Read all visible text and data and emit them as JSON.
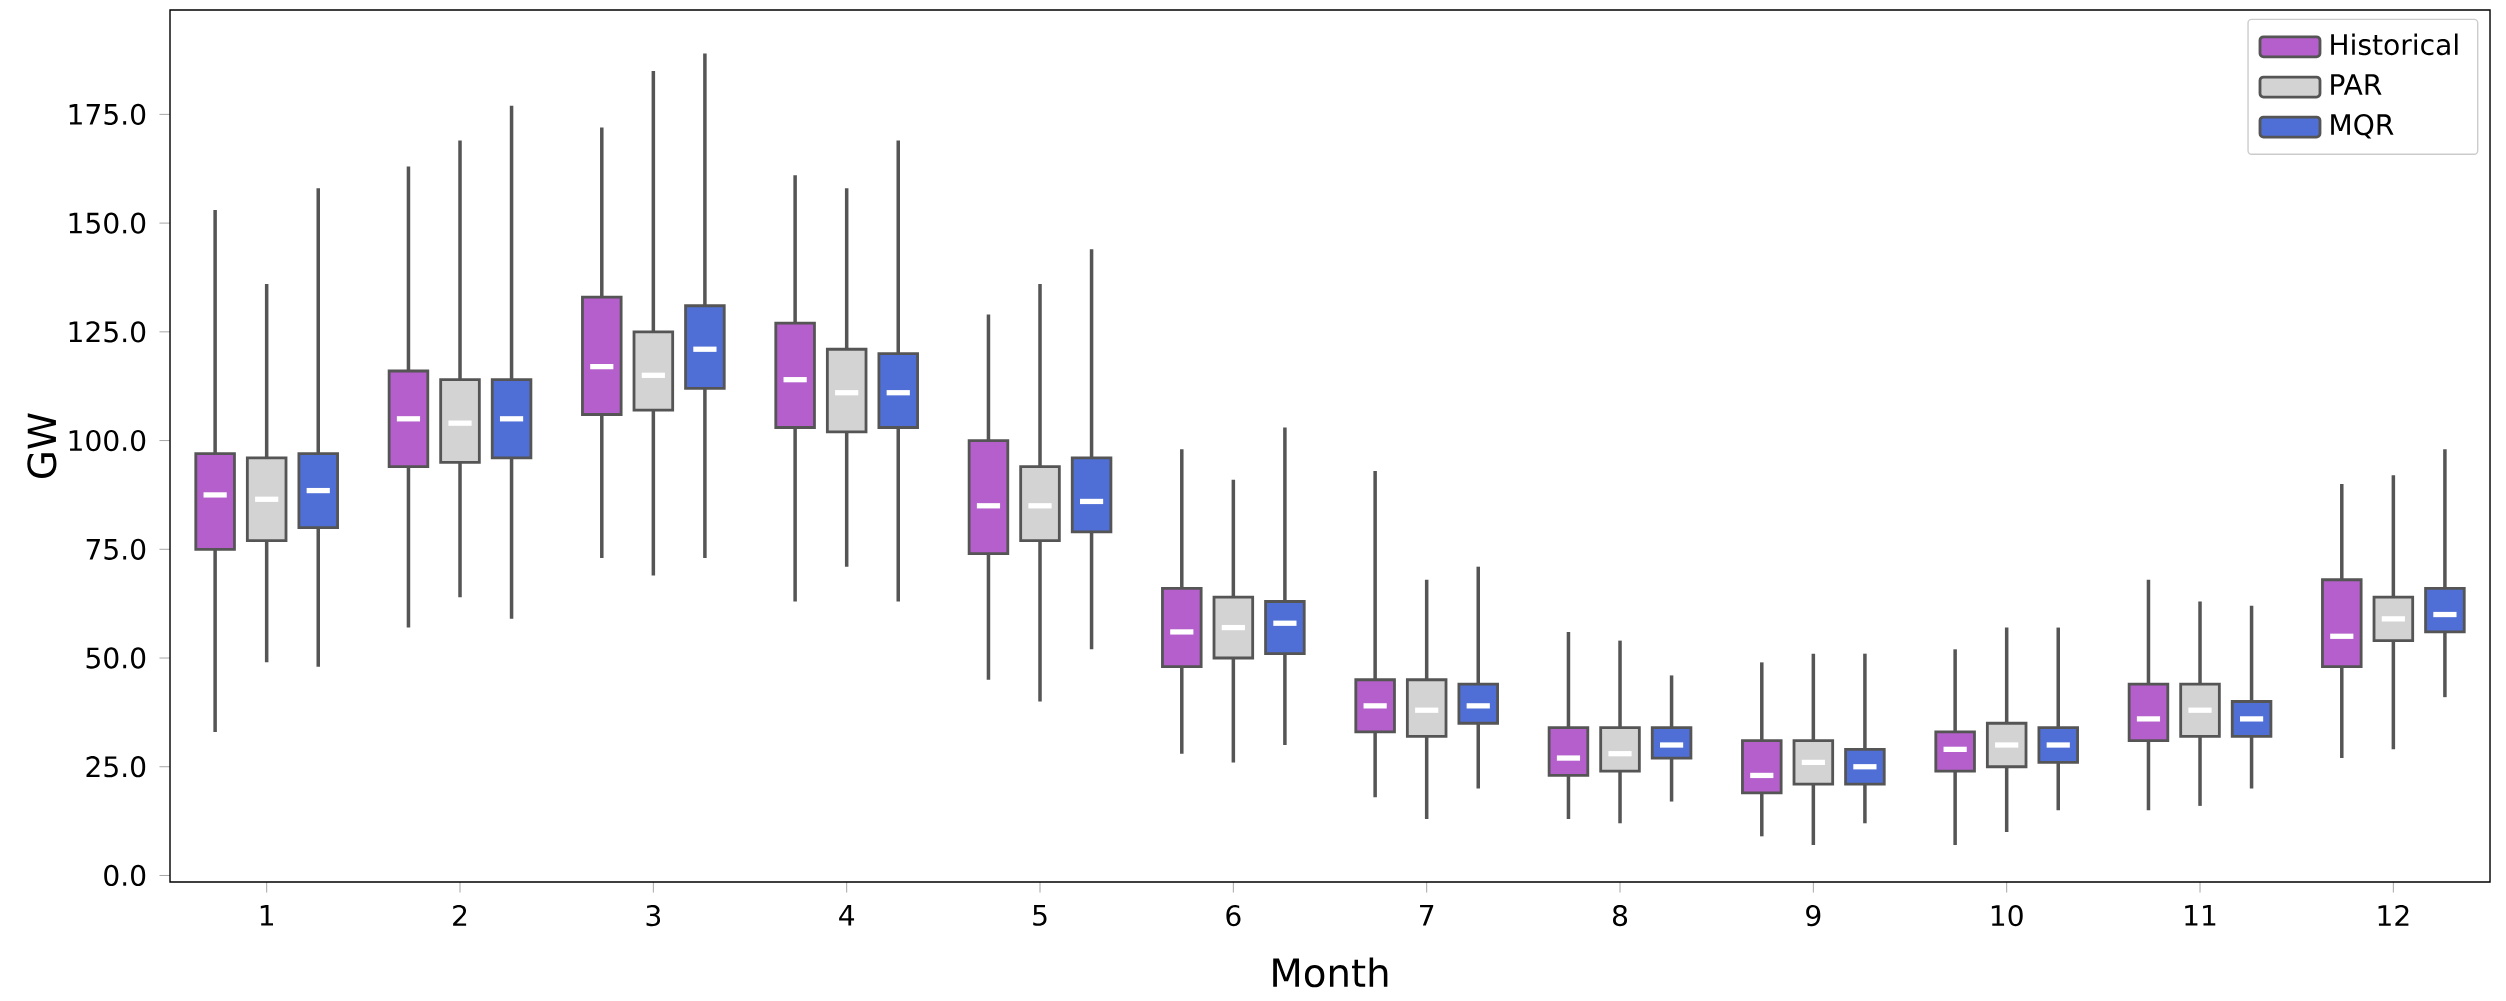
{
  "chart_data": {
    "type": "box",
    "xlabel": "Month",
    "ylabel": "GW",
    "categories": [
      "1",
      "2",
      "3",
      "4",
      "5",
      "6",
      "7",
      "8",
      "9",
      "10",
      "11",
      "12"
    ],
    "ylim": [
      -1.5,
      199
    ],
    "yticks": [
      {
        "value": 0,
        "label": "0.0"
      },
      {
        "value": 25,
        "label": "25.0"
      },
      {
        "value": 50,
        "label": "50.0"
      },
      {
        "value": 75,
        "label": "75.0"
      },
      {
        "value": 100,
        "label": "100.0"
      },
      {
        "value": 125,
        "label": "125.0"
      },
      {
        "value": 150,
        "label": "150.0"
      },
      {
        "value": 175,
        "label": "175.0"
      }
    ],
    "legend": "top right",
    "series": [
      {
        "name": "Historical",
        "color": "#b45fcb",
        "boxes": [
          {
            "low": 33,
            "q1": 75,
            "median": 87.5,
            "q3": 97,
            "high": 153
          },
          {
            "low": 57,
            "q1": 94,
            "median": 105,
            "q3": 116,
            "high": 163
          },
          {
            "low": 73,
            "q1": 106,
            "median": 117,
            "q3": 133,
            "high": 172
          },
          {
            "low": 63,
            "q1": 103,
            "median": 114,
            "q3": 127,
            "high": 161
          },
          {
            "low": 45,
            "q1": 74,
            "median": 85,
            "q3": 100,
            "high": 129
          },
          {
            "low": 28,
            "q1": 48,
            "median": 56,
            "q3": 66,
            "high": 98
          },
          {
            "low": 18,
            "q1": 33,
            "median": 39,
            "q3": 45,
            "high": 93
          },
          {
            "low": 13,
            "q1": 23,
            "median": 27,
            "q3": 34,
            "high": 56
          },
          {
            "low": 9,
            "q1": 19,
            "median": 23,
            "q3": 31,
            "high": 49
          },
          {
            "low": 7,
            "q1": 24,
            "median": 29,
            "q3": 33,
            "high": 52
          },
          {
            "low": 15,
            "q1": 31,
            "median": 36,
            "q3": 44,
            "high": 68
          },
          {
            "low": 27,
            "q1": 48,
            "median": 55,
            "q3": 68,
            "high": 90
          }
        ]
      },
      {
        "name": "PAR",
        "color": "#d3d3d3",
        "boxes": [
          {
            "low": 49,
            "q1": 77,
            "median": 86.5,
            "q3": 96,
            "high": 136
          },
          {
            "low": 64,
            "q1": 95,
            "median": 104,
            "q3": 114,
            "high": 169
          },
          {
            "low": 69,
            "q1": 107,
            "median": 115,
            "q3": 125,
            "high": 185
          },
          {
            "low": 71,
            "q1": 102,
            "median": 111,
            "q3": 121,
            "high": 158
          },
          {
            "low": 40,
            "q1": 77,
            "median": 85,
            "q3": 94,
            "high": 136
          },
          {
            "low": 26,
            "q1": 50,
            "median": 57,
            "q3": 64,
            "high": 91
          },
          {
            "low": 13,
            "q1": 32,
            "median": 38,
            "q3": 45,
            "high": 68
          },
          {
            "low": 12,
            "q1": 24,
            "median": 28,
            "q3": 34,
            "high": 54
          },
          {
            "low": 7,
            "q1": 21,
            "median": 26,
            "q3": 31,
            "high": 51
          },
          {
            "low": 10,
            "q1": 25,
            "median": 30,
            "q3": 35,
            "high": 57
          },
          {
            "low": 16,
            "q1": 32,
            "median": 38,
            "q3": 44,
            "high": 63
          },
          {
            "low": 29,
            "q1": 54,
            "median": 59,
            "q3": 64,
            "high": 92
          }
        ]
      },
      {
        "name": "MQR",
        "color": "#4f6fd6",
        "boxes": [
          {
            "low": 48,
            "q1": 80,
            "median": 88.5,
            "q3": 97,
            "high": 158
          },
          {
            "low": 59,
            "q1": 96,
            "median": 105,
            "q3": 114,
            "high": 177
          },
          {
            "low": 73,
            "q1": 112,
            "median": 121,
            "q3": 131,
            "high": 189
          },
          {
            "low": 63,
            "q1": 103,
            "median": 111,
            "q3": 120,
            "high": 169
          },
          {
            "low": 52,
            "q1": 79,
            "median": 86,
            "q3": 96,
            "high": 144
          },
          {
            "low": 30,
            "q1": 51,
            "median": 58,
            "q3": 63,
            "high": 103
          },
          {
            "low": 20,
            "q1": 35,
            "median": 39,
            "q3": 44,
            "high": 71
          },
          {
            "low": 17,
            "q1": 27,
            "median": 30,
            "q3": 34,
            "high": 46
          },
          {
            "low": 12,
            "q1": 21,
            "median": 25,
            "q3": 29,
            "high": 51
          },
          {
            "low": 15,
            "q1": 26,
            "median": 30,
            "q3": 34,
            "high": 57
          },
          {
            "low": 20,
            "q1": 32,
            "median": 36,
            "q3": 40,
            "high": 62
          },
          {
            "low": 41,
            "q1": 56,
            "median": 60,
            "q3": 66,
            "high": 98
          }
        ]
      }
    ]
  }
}
